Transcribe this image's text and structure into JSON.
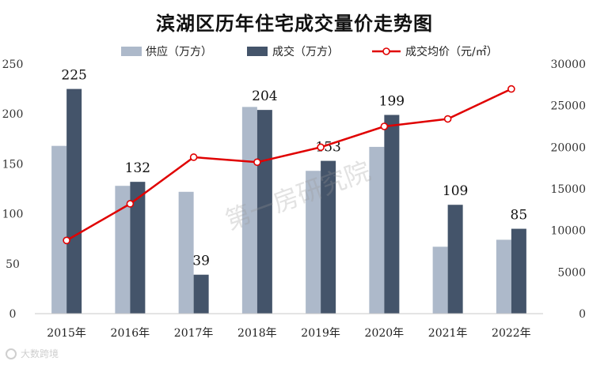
{
  "chart_data": {
    "type": "bar",
    "title": "滨湖区历年住宅成交量价走势图",
    "categories": [
      "2015年",
      "2016年",
      "2017年",
      "2018年",
      "2019年",
      "2020年",
      "2021年",
      "2022年"
    ],
    "series": [
      {
        "name": "供应（万方）",
        "type": "bar",
        "axis": "left",
        "color": "#adb9ca",
        "values": [
          168,
          128,
          122,
          207,
          143,
          167,
          67,
          74
        ]
      },
      {
        "name": "成交（万方）",
        "type": "bar",
        "axis": "left",
        "color": "#44546a",
        "values": [
          225,
          132,
          39,
          204,
          153,
          199,
          109,
          85
        ],
        "data_labels": [
          "225",
          "132",
          "39",
          "204",
          "153",
          "199",
          "109",
          "85"
        ]
      },
      {
        "name": "成交均价（元/㎡）",
        "type": "line",
        "axis": "right",
        "color": "#e00000",
        "values": [
          8800,
          13200,
          18800,
          18200,
          20000,
          22500,
          23400,
          27000
        ]
      }
    ],
    "y_left": {
      "min": 0,
      "max": 250,
      "ticks": [
        "0",
        "50",
        "100",
        "150",
        "200",
        "250"
      ]
    },
    "y_right": {
      "min": 0,
      "max": 30000,
      "ticks": [
        "0",
        "5000",
        "10000",
        "15000",
        "20000",
        "25000",
        "30000"
      ]
    },
    "legend_position": "top",
    "grid": false
  },
  "watermark": "第一房研究院",
  "brand": "大数跨境"
}
